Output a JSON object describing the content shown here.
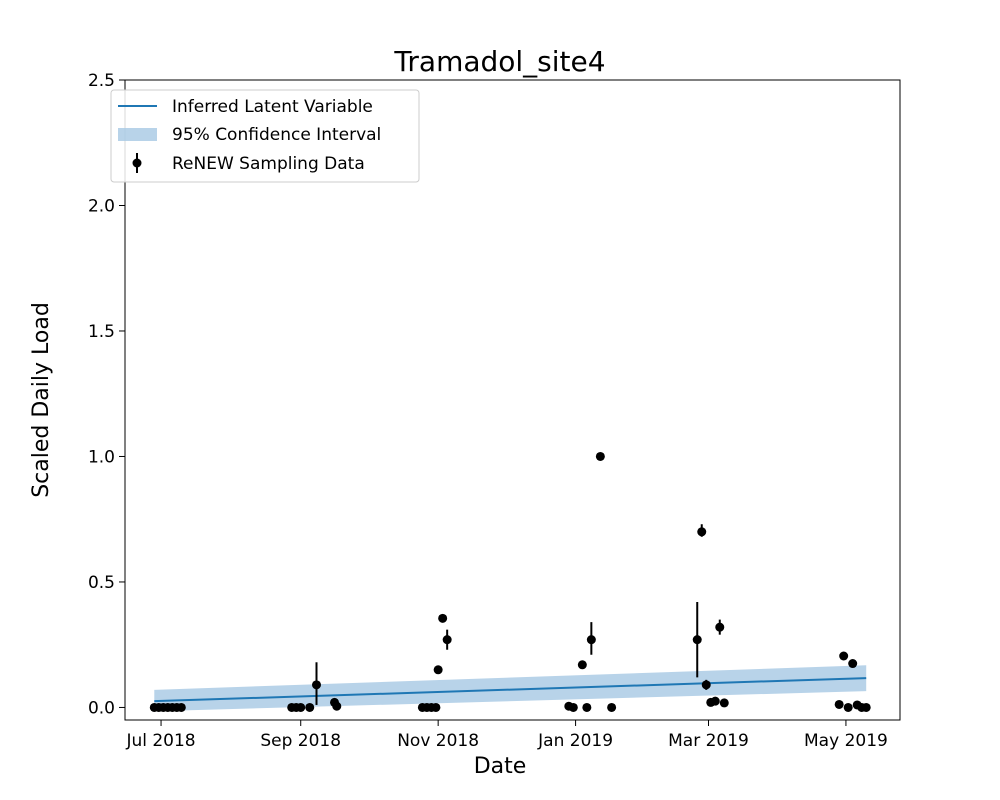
{
  "chart_data": {
    "type": "line",
    "title": "Tramadol_site4",
    "xlabel": "Date",
    "ylabel": "Scaled Daily Load",
    "xlim": [
      "2018-06-15",
      "2019-05-25"
    ],
    "ylim": [
      -0.05,
      2.5
    ],
    "x_ticks": [
      {
        "date": "2018-07-01",
        "label": "Jul 2018"
      },
      {
        "date": "2018-09-01",
        "label": "Sep 2018"
      },
      {
        "date": "2018-11-01",
        "label": "Nov 2018"
      },
      {
        "date": "2019-01-01",
        "label": "Jan 2019"
      },
      {
        "date": "2019-03-01",
        "label": "Mar 2019"
      },
      {
        "date": "2019-05-01",
        "label": "May 2019"
      }
    ],
    "y_ticks": [
      {
        "value": 0.0,
        "label": "0.0"
      },
      {
        "value": 0.5,
        "label": "0.5"
      },
      {
        "value": 1.0,
        "label": "1.0"
      },
      {
        "value": 1.5,
        "label": "1.5"
      },
      {
        "value": 2.0,
        "label": "2.0"
      },
      {
        "value": 2.5,
        "label": "2.5"
      }
    ],
    "legend": {
      "placement": "top-left",
      "entries": [
        "Inferred Latent Variable",
        "95% Confidence Interval",
        "ReNEW Sampling Data"
      ]
    },
    "grid": false,
    "colors": {
      "line": "#1f77b4",
      "band": "#a6c8e3",
      "points": "#000000"
    },
    "series": [
      {
        "name": "Inferred Latent Variable",
        "kind": "line",
        "x": [
          "2018-06-28",
          "2019-05-10"
        ],
        "y": [
          0.025,
          0.117
        ]
      },
      {
        "name": "95% Confidence Interval",
        "kind": "band",
        "x": [
          "2018-06-28",
          "2019-05-10"
        ],
        "lower": [
          -0.015,
          0.065
        ],
        "upper": [
          0.07,
          0.168
        ]
      },
      {
        "name": "ReNEW Sampling Data",
        "kind": "errorbar",
        "points": [
          {
            "x": "2018-06-28",
            "y": 0.0
          },
          {
            "x": "2018-06-30",
            "y": 0.0
          },
          {
            "x": "2018-07-02",
            "y": 0.0
          },
          {
            "x": "2018-07-04",
            "y": 0.0
          },
          {
            "x": "2018-07-06",
            "y": 0.0
          },
          {
            "x": "2018-07-08",
            "y": 0.0
          },
          {
            "x": "2018-07-10",
            "y": 0.0
          },
          {
            "x": "2018-08-28",
            "y": 0.0
          },
          {
            "x": "2018-08-30",
            "y": 0.0
          },
          {
            "x": "2018-09-01",
            "y": 0.0
          },
          {
            "x": "2018-09-05",
            "y": 0.0
          },
          {
            "x": "2018-09-08",
            "y": 0.09,
            "err_low": 0.01,
            "err_high": 0.18
          },
          {
            "x": "2018-09-16",
            "y": 0.02
          },
          {
            "x": "2018-09-17",
            "y": 0.005
          },
          {
            "x": "2018-10-25",
            "y": 0.0
          },
          {
            "x": "2018-10-27",
            "y": 0.0
          },
          {
            "x": "2018-10-29",
            "y": 0.0
          },
          {
            "x": "2018-10-31",
            "y": 0.0
          },
          {
            "x": "2018-11-01",
            "y": 0.15
          },
          {
            "x": "2018-11-03",
            "y": 0.355
          },
          {
            "x": "2018-11-05",
            "y": 0.27,
            "err_low": 0.23,
            "err_high": 0.31
          },
          {
            "x": "2018-12-29",
            "y": 0.005
          },
          {
            "x": "2018-12-31",
            "y": 0.0
          },
          {
            "x": "2019-01-04",
            "y": 0.17,
            "err_low": 0.155,
            "err_high": 0.185
          },
          {
            "x": "2019-01-06",
            "y": 0.0
          },
          {
            "x": "2019-01-08",
            "y": 0.27,
            "err_low": 0.21,
            "err_high": 0.34
          },
          {
            "x": "2019-01-12",
            "y": 1.0
          },
          {
            "x": "2019-01-17",
            "y": 0.0
          },
          {
            "x": "2019-02-24",
            "y": 0.27,
            "err_low": 0.12,
            "err_high": 0.42
          },
          {
            "x": "2019-02-26",
            "y": 0.7,
            "err_low": 0.68,
            "err_high": 0.73
          },
          {
            "x": "2019-02-28",
            "y": 0.09,
            "err_low": 0.07,
            "err_high": 0.11
          },
          {
            "x": "2019-03-02",
            "y": 0.02
          },
          {
            "x": "2019-03-04",
            "y": 0.025
          },
          {
            "x": "2019-03-06",
            "y": 0.32,
            "err_low": 0.29,
            "err_high": 0.35
          },
          {
            "x": "2019-03-08",
            "y": 0.018
          },
          {
            "x": "2019-04-28",
            "y": 0.012
          },
          {
            "x": "2019-04-30",
            "y": 0.205
          },
          {
            "x": "2019-05-02",
            "y": 0.0
          },
          {
            "x": "2019-05-04",
            "y": 0.175
          },
          {
            "x": "2019-05-06",
            "y": 0.01
          },
          {
            "x": "2019-05-08",
            "y": 0.0
          },
          {
            "x": "2019-05-10",
            "y": 0.0
          }
        ]
      }
    ]
  }
}
